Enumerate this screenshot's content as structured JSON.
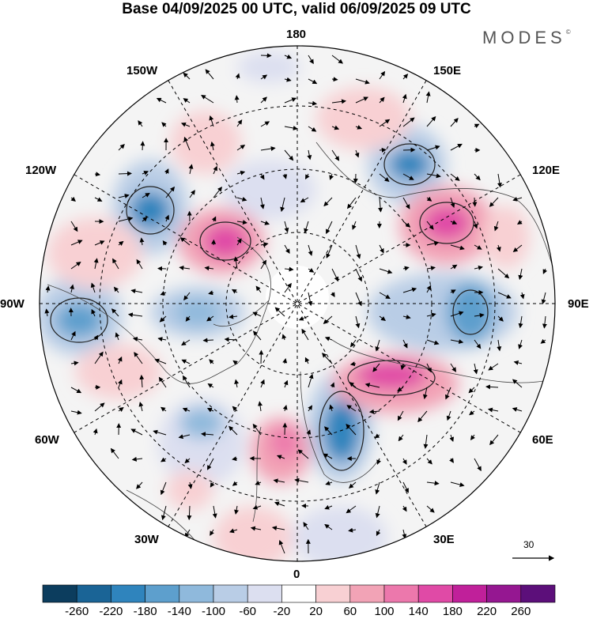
{
  "title": "Base 04/09/2025 00 UTC, valid 06/09/2025 09 UTC",
  "brand": "MODES",
  "brand_mark": "©",
  "longitude_labels": [
    {
      "id": "lon-180",
      "text": "180"
    },
    {
      "id": "lon-150w",
      "text": "150W"
    },
    {
      "id": "lon-150e",
      "text": "150E"
    },
    {
      "id": "lon-120w",
      "text": "120W"
    },
    {
      "id": "lon-120e",
      "text": "120E"
    },
    {
      "id": "lon-90w",
      "text": "90W"
    },
    {
      "id": "lon-90e",
      "text": "90E"
    },
    {
      "id": "lon-60w",
      "text": "60W"
    },
    {
      "id": "lon-60e",
      "text": "60E"
    },
    {
      "id": "lon-30w",
      "text": "30W"
    },
    {
      "id": "lon-30e",
      "text": "30E"
    },
    {
      "id": "lon-0",
      "text": "0"
    }
  ],
  "reference_vector": "30",
  "colorbar": {
    "labels": [
      "-260",
      "-220",
      "-180",
      "-140",
      "-100",
      "-60",
      "-20",
      "20",
      "60",
      "100",
      "140",
      "180",
      "220",
      "260"
    ],
    "colors": [
      "#0c3d5e",
      "#1a6496",
      "#2f84bd",
      "#5d9fcd",
      "#8fb9dc",
      "#b9cde6",
      "#dcdff0",
      "#ffffff",
      "#f8d0d3",
      "#f2a3b6",
      "#ec78ac",
      "#e04aa6",
      "#c0209a",
      "#951791",
      "#5c0f7a"
    ]
  },
  "colors": {
    "negative_strong": "#2f84bd",
    "negative_light": "#b9cde6",
    "positive_strong": "#e04aa6",
    "positive_light": "#f8d0d3",
    "land": "#e6e6e6"
  }
}
